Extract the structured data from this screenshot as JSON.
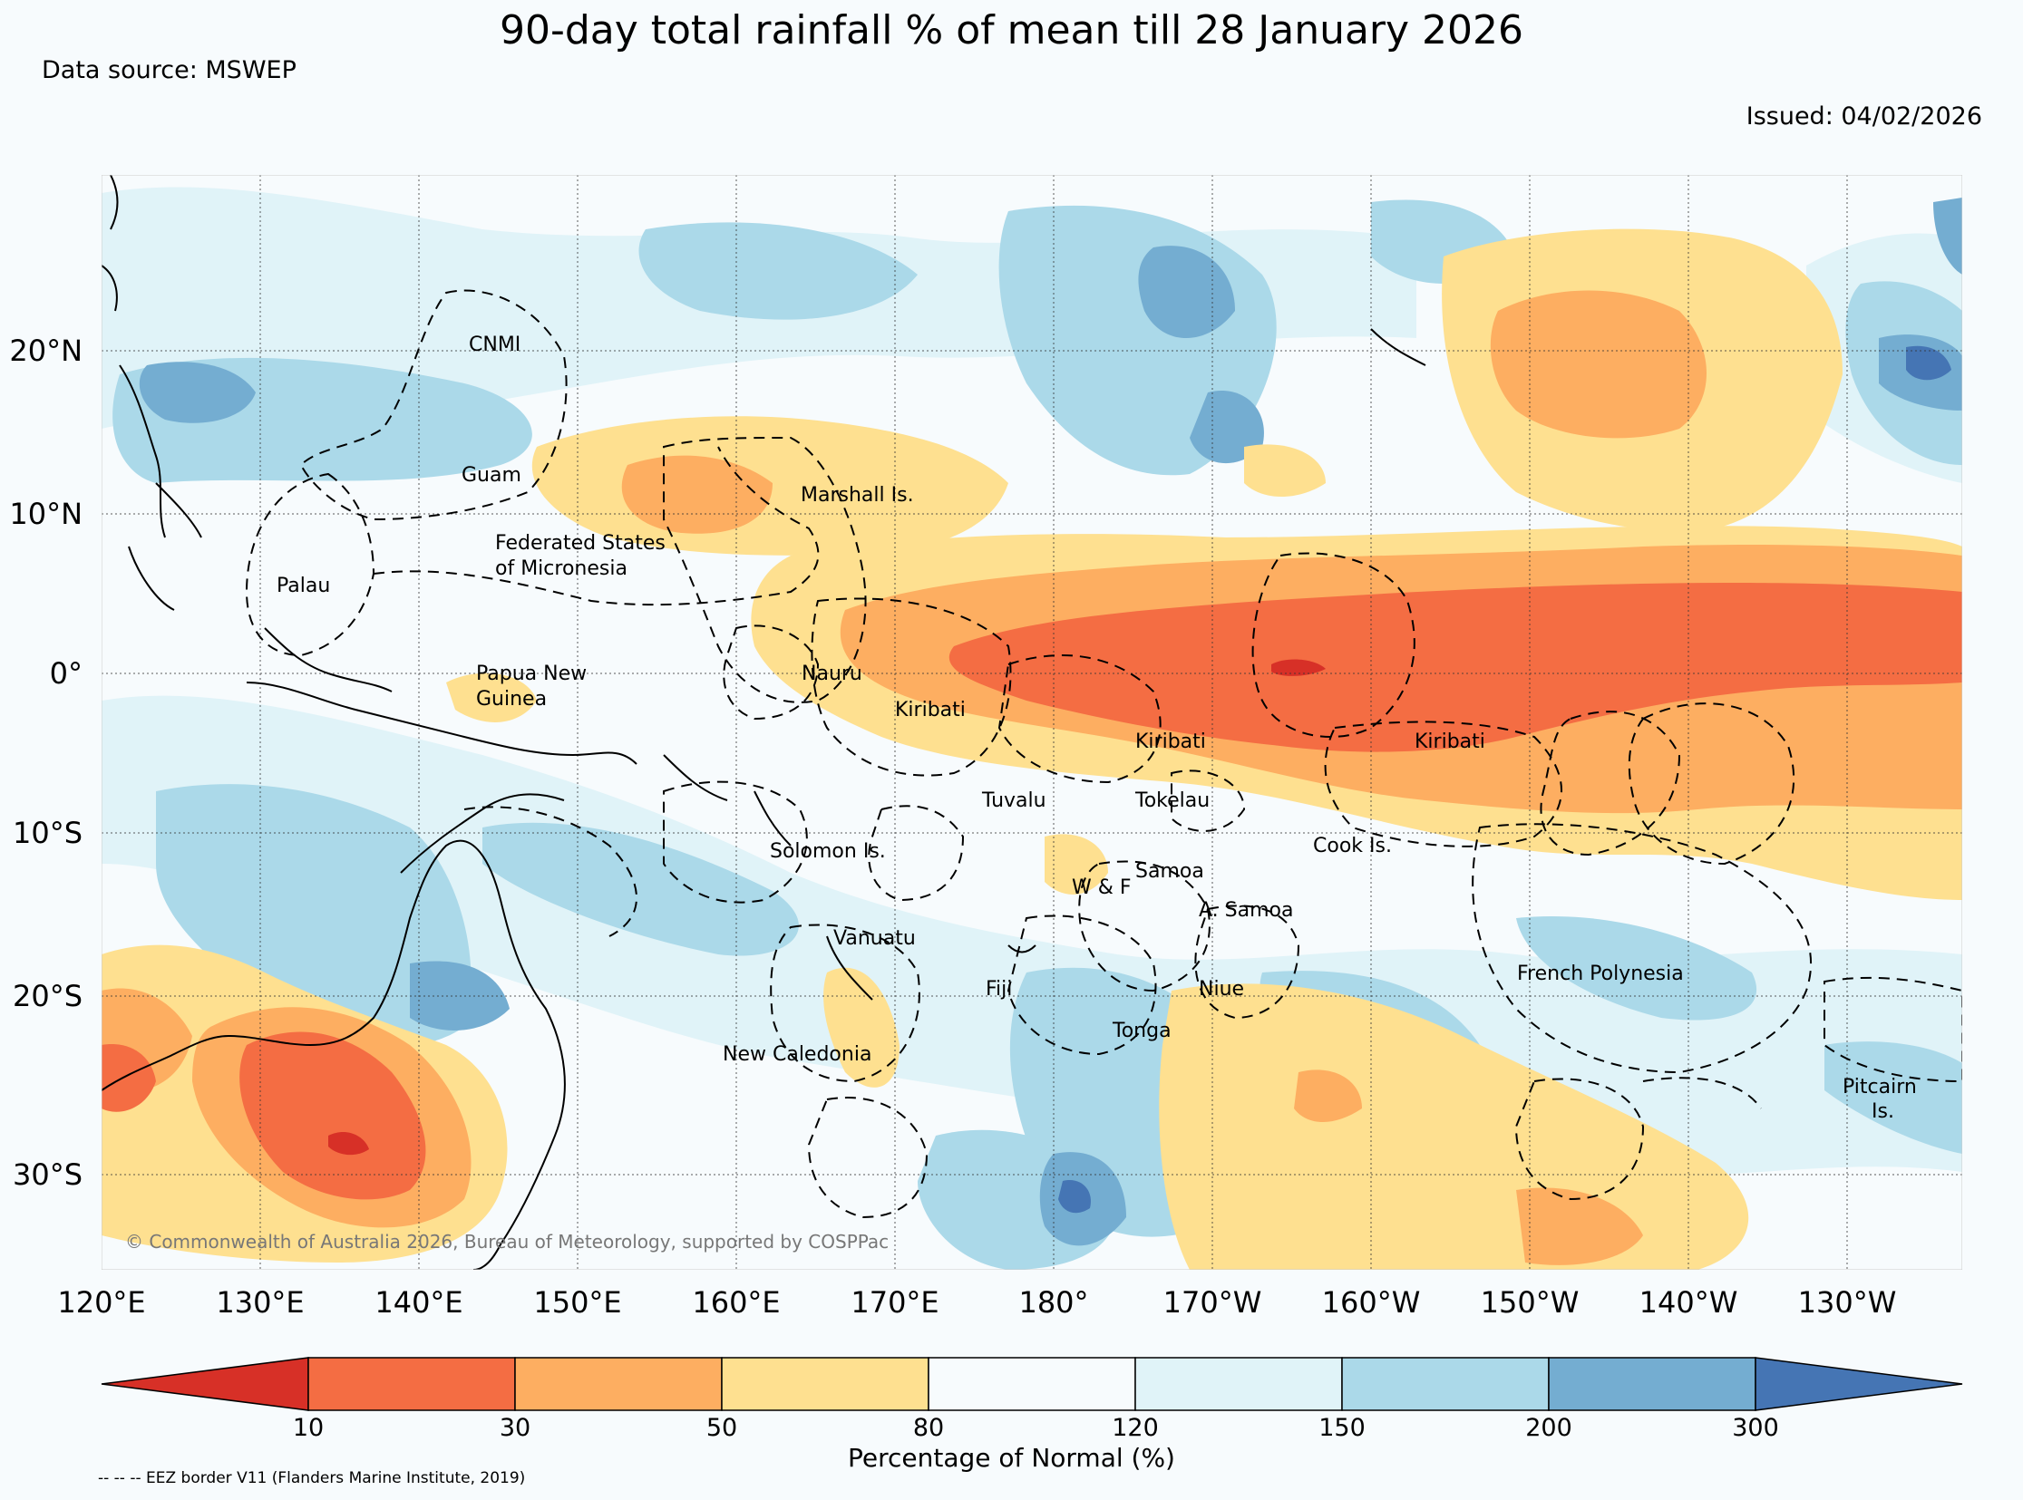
{
  "title": "90-day total rainfall % of mean till 28 January 2026",
  "data_source": "Data source: MSWEP",
  "issued": "Issued: 04/02/2026",
  "longitude_labels": [
    "120°E",
    "130°E",
    "140°E",
    "150°E",
    "160°E",
    "170°E",
    "180°",
    "170°W",
    "160°W",
    "150°W",
    "140°W",
    "130°W"
  ],
  "latitude_labels": [
    "20°N",
    "10°N",
    "0°",
    "10°S",
    "20°S",
    "30°S"
  ],
  "places": {
    "cnmi": "CNMI",
    "guam": "Guam",
    "fsm_1": "Federated States",
    "fsm_2": "of Micronesia",
    "palau": "Palau",
    "marshall": "Marshall Is.",
    "png_1": "Papua New",
    "png_2": "Guinea",
    "nauru": "Nauru",
    "kiribati_w": "Kiribati",
    "kiribati_c": "Kiribati",
    "kiribati_e": "Kiribati",
    "tuvalu": "Tuvalu",
    "tokelau": "Tokelau",
    "solomon": "Solomon Is.",
    "cook": "Cook Is.",
    "samoa": "Samoa",
    "wf": "W & F",
    "asamoa": "A. Samoa",
    "vanuatu": "Vanuatu",
    "fiji": "Fiji",
    "niue": "Niue",
    "tonga": "Tonga",
    "newcal": "New Caledonia",
    "frpoly": "French Polynesia",
    "pitcairn_1": "Pitcairn",
    "pitcairn_2": "Is."
  },
  "copyright": "© Commonwealth of Australia 2026, Bureau of Meteorology, supported by COSPPac",
  "colorbar": {
    "ticks": [
      "10",
      "30",
      "50",
      "80",
      "120",
      "150",
      "200",
      "300"
    ],
    "label": "Percentage of Normal (%)",
    "colors": {
      "lt10": "#d73027",
      "c10_30": "#f46d43",
      "c30_50": "#fdae61",
      "c50_80": "#fee090",
      "c80_120": "#f7fbfd",
      "c120_150": "#e0f3f8",
      "c150_200": "#abd9e9",
      "c200_300": "#74add1",
      "gt300": "#4575b4"
    }
  },
  "eez_note": "-- -- -- EEZ border V11 (Flanders Marine Institute, 2019)"
}
